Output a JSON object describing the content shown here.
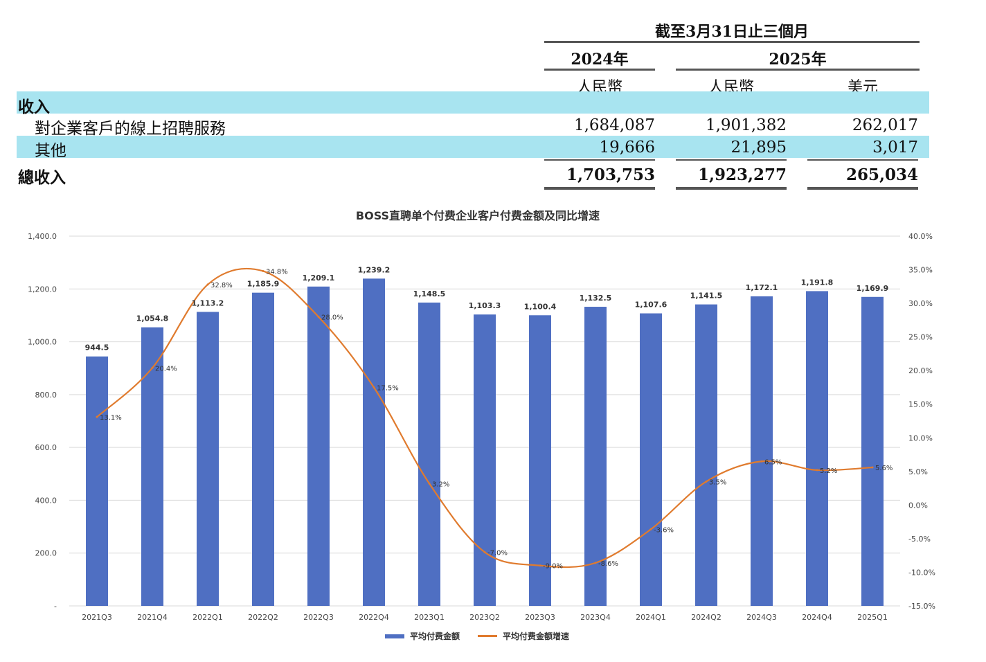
{
  "table": {
    "period_header": "截至3月31日止三個月",
    "year_2024": "2024年",
    "year_2025": "2025年",
    "cur_rmb_2024": "人民幣",
    "cur_rmb_2025": "人民幣",
    "cur_usd": "美元",
    "section": "收入",
    "rows": [
      {
        "label": "對企業客戶的線上招聘服務",
        "v2024": "1,684,087",
        "v2025": "1,901,382",
        "usd": "262,017"
      },
      {
        "label": "其他",
        "v2024": "19,666",
        "v2025": "21,895",
        "usd": "3,017"
      }
    ],
    "total": {
      "label": "總收入",
      "v2024": "1,703,753",
      "v2025": "1,923,277",
      "usd": "265,034"
    }
  },
  "chart_data": {
    "type": "bar",
    "title": "BOSS直聘单个付费企业客户付费金额及同比增速",
    "categories": [
      "2021Q3",
      "2021Q4",
      "2022Q1",
      "2022Q2",
      "2022Q3",
      "2022Q4",
      "2023Q1",
      "2023Q2",
      "2023Q3",
      "2023Q4",
      "2024Q1",
      "2024Q2",
      "2024Q3",
      "2024Q4",
      "2025Q1"
    ],
    "series": [
      {
        "name": "平均付费金额",
        "type": "bar",
        "axis": "left",
        "values": [
          944.5,
          1054.8,
          1113.2,
          1185.9,
          1209.1,
          1239.2,
          1148.5,
          1103.3,
          1100.4,
          1132.5,
          1107.6,
          1141.5,
          1172.1,
          1191.8,
          1169.9
        ],
        "labels": [
          "944.5",
          "1,054.8",
          "1,113.2",
          "1,185.9",
          "1,209.1",
          "1,239.2",
          "1,148.5",
          "1,103.3",
          "1,100.4",
          "1,132.5",
          "1,107.6",
          "1,141.5",
          "1,172.1",
          "1,191.8",
          "1,169.9"
        ],
        "color": "#4f6fc2"
      },
      {
        "name": "平均付费金额增速",
        "type": "line",
        "axis": "right",
        "values": [
          13.1,
          20.4,
          32.8,
          34.8,
          28.0,
          17.5,
          3.2,
          -7.0,
          -9.0,
          -8.6,
          -3.6,
          3.5,
          6.5,
          5.2,
          5.6
        ],
        "labels": [
          "13.1%",
          "20.4%",
          "32.8%",
          "34.8%",
          "28.0%",
          "17.5%",
          "3.2%",
          "-7.0%",
          "-9.0%",
          "-8.6%",
          "-3.6%",
          "3.5%",
          "6.5%",
          "5.2%",
          "5.6%"
        ],
        "color": "#e07b2e"
      }
    ],
    "yleft": {
      "ylim": [
        0,
        1400
      ],
      "ticks": [
        "1,400.0",
        "1,200.0",
        "1,000.0",
        "800.0",
        "600.0",
        "400.0",
        "200.0",
        "-"
      ]
    },
    "yright": {
      "ylim": [
        -15,
        40
      ],
      "ticks": [
        "40.0%",
        "35.0%",
        "30.0%",
        "25.0%",
        "20.0%",
        "15.0%",
        "10.0%",
        "5.0%",
        "0.0%",
        "-5.0%",
        "-10.0%",
        "-15.0%"
      ]
    },
    "grid": true,
    "legend": "bottom"
  }
}
